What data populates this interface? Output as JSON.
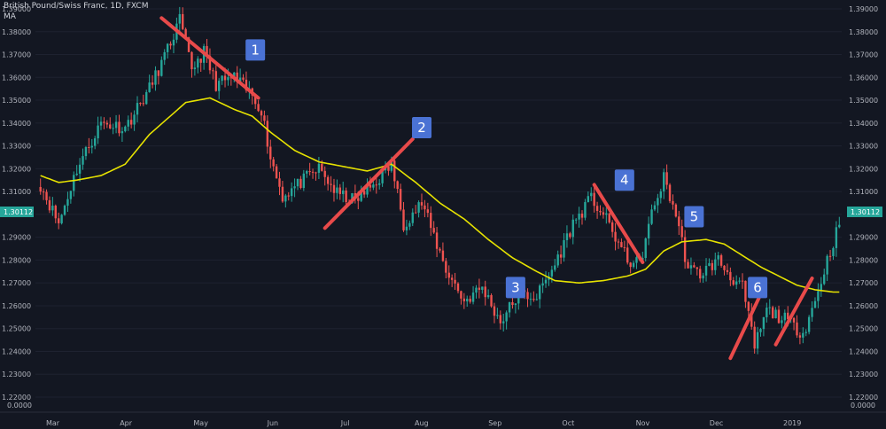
{
  "header": {
    "title": "British Pound/Swiss Franc, 1D, FXCM",
    "indicator": "MA"
  },
  "colors": {
    "background": "#131722",
    "bull": "#26a69a",
    "bear": "#ef5350",
    "ma_line": "#e6e200",
    "trendline": "#e84a4a",
    "badge": "#4a72d4",
    "price_tag": "#26a69a"
  },
  "chart_data": {
    "type": "candlestick",
    "ylim": [
      1.22,
      1.39
    ],
    "y_ticks": [
      "1.39000",
      "1.38000",
      "1.37000",
      "1.36000",
      "1.35000",
      "1.34000",
      "1.33000",
      "1.32000",
      "1.31000",
      "1.30000",
      "1.29000",
      "1.28000",
      "1.27000",
      "1.26000",
      "1.25000",
      "1.24000",
      "1.23000",
      "1.22000"
    ],
    "y_zero_label": "0.0000",
    "current_price": "1.30112",
    "x_labels": [
      "Mar",
      "Apr",
      "May",
      "Jun",
      "Jul",
      "Aug",
      "Sep",
      "Oct",
      "Nov",
      "Dec",
      "2019"
    ],
    "price_path": [
      [
        0,
        1.313
      ],
      [
        6,
        1.296
      ],
      [
        12,
        1.32
      ],
      [
        20,
        1.34
      ],
      [
        28,
        1.338
      ],
      [
        36,
        1.355
      ],
      [
        42,
        1.372
      ],
      [
        46,
        1.385
      ],
      [
        50,
        1.364
      ],
      [
        54,
        1.371
      ],
      [
        58,
        1.357
      ],
      [
        64,
        1.36
      ],
      [
        70,
        1.352
      ],
      [
        73,
        1.346
      ],
      [
        76,
        1.325
      ],
      [
        80,
        1.308
      ],
      [
        86,
        1.314
      ],
      [
        92,
        1.32
      ],
      [
        98,
        1.309
      ],
      [
        104,
        1.306
      ],
      [
        110,
        1.313
      ],
      [
        116,
        1.322
      ],
      [
        120,
        1.296
      ],
      [
        126,
        1.305
      ],
      [
        134,
        1.276
      ],
      [
        140,
        1.262
      ],
      [
        146,
        1.268
      ],
      [
        152,
        1.253
      ],
      [
        158,
        1.265
      ],
      [
        164,
        1.264
      ],
      [
        170,
        1.278
      ],
      [
        176,
        1.296
      ],
      [
        182,
        1.307
      ],
      [
        186,
        1.3
      ],
      [
        190,
        1.29
      ],
      [
        194,
        1.28
      ],
      [
        198,
        1.278
      ],
      [
        202,
        1.3
      ],
      [
        206,
        1.316
      ],
      [
        210,
        1.3
      ],
      [
        214,
        1.276
      ],
      [
        218,
        1.274
      ],
      [
        224,
        1.28
      ],
      [
        228,
        1.273
      ],
      [
        232,
        1.268
      ],
      [
        236,
        1.242
      ],
      [
        240,
        1.258
      ],
      [
        246,
        1.254
      ],
      [
        252,
        1.248
      ],
      [
        256,
        1.262
      ],
      [
        260,
        1.28
      ],
      [
        264,
        1.296
      ]
    ],
    "moving_average": [
      [
        0,
        1.317
      ],
      [
        6,
        1.314
      ],
      [
        12,
        1.315
      ],
      [
        20,
        1.317
      ],
      [
        28,
        1.322
      ],
      [
        36,
        1.335
      ],
      [
        42,
        1.342
      ],
      [
        48,
        1.349
      ],
      [
        56,
        1.351
      ],
      [
        64,
        1.346
      ],
      [
        70,
        1.343
      ],
      [
        76,
        1.336
      ],
      [
        84,
        1.328
      ],
      [
        92,
        1.323
      ],
      [
        100,
        1.321
      ],
      [
        108,
        1.319
      ],
      [
        116,
        1.322
      ],
      [
        124,
        1.314
      ],
      [
        132,
        1.305
      ],
      [
        140,
        1.298
      ],
      [
        148,
        1.289
      ],
      [
        156,
        1.281
      ],
      [
        164,
        1.275
      ],
      [
        170,
        1.271
      ],
      [
        178,
        1.27
      ],
      [
        186,
        1.271
      ],
      [
        194,
        1.273
      ],
      [
        200,
        1.276
      ],
      [
        206,
        1.284
      ],
      [
        212,
        1.288
      ],
      [
        220,
        1.289
      ],
      [
        226,
        1.287
      ],
      [
        232,
        1.282
      ],
      [
        238,
        1.277
      ],
      [
        244,
        1.273
      ],
      [
        250,
        1.269
      ],
      [
        256,
        1.267
      ],
      [
        262,
        1.266
      ],
      [
        264,
        1.266
      ]
    ],
    "trendlines": [
      {
        "from": [
          40,
          1.386
        ],
        "to": [
          72,
          1.351
        ]
      },
      {
        "from": [
          94,
          1.294
        ],
        "to": [
          123,
          1.333
        ]
      },
      {
        "from": [
          183,
          1.313
        ],
        "to": [
          199,
          1.279
        ]
      },
      {
        "from": [
          228,
          1.237
        ],
        "to": [
          238,
          1.265
        ]
      },
      {
        "from": [
          243,
          1.243
        ],
        "to": [
          255,
          1.272
        ]
      }
    ],
    "annotations": [
      {
        "text": "1",
        "at": [
          71,
          1.372
        ]
      },
      {
        "text": "2",
        "at": [
          126,
          1.338
        ]
      },
      {
        "text": "3",
        "at": [
          157,
          1.268
        ]
      },
      {
        "text": "4",
        "at": [
          193,
          1.315
        ]
      },
      {
        "text": "5",
        "at": [
          216,
          1.299
        ]
      },
      {
        "text": "6",
        "at": [
          237,
          1.268
        ]
      }
    ]
  }
}
